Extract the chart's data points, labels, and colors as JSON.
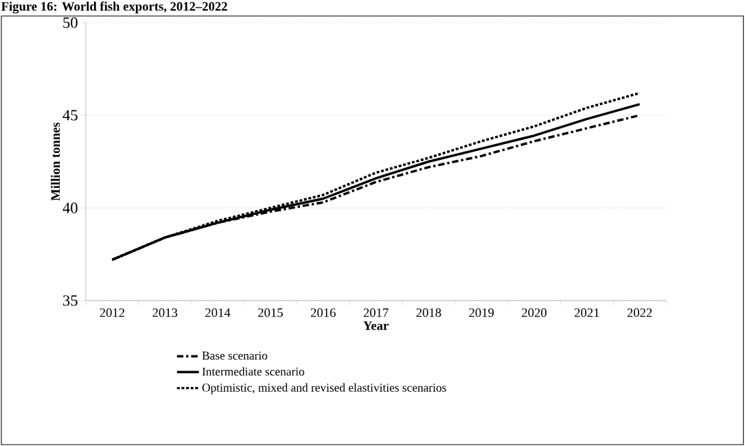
{
  "chart_data": {
    "type": "line",
    "title": "Figure 16: World fish exports, 2012–2022",
    "xlabel": "Year",
    "ylabel": "Million tonnes",
    "categories": [
      "2012",
      "2013",
      "2014",
      "2015",
      "2016",
      "2017",
      "2018",
      "2019",
      "2020",
      "2021",
      "2022"
    ],
    "series": [
      {
        "name": "Base scenario",
        "color": "#000000",
        "line_style": "dashed",
        "values": [
          37.2,
          38.4,
          39.2,
          39.8,
          40.3,
          41.4,
          42.2,
          42.8,
          43.6,
          44.3,
          45.0
        ]
      },
      {
        "name": "Intermediate scenario",
        "color": "#000000",
        "line_style": "solid",
        "values": [
          37.2,
          38.4,
          39.2,
          39.9,
          40.5,
          41.6,
          42.5,
          43.2,
          43.9,
          44.8,
          45.6
        ]
      },
      {
        "name": "Optimistic, mixed and revised elastivities scenarios",
        "color": "#000000",
        "line_style": "dotted",
        "values": [
          37.2,
          38.4,
          39.3,
          40.0,
          40.7,
          41.9,
          42.7,
          43.6,
          44.4,
          45.4,
          46.2
        ]
      }
    ],
    "ylim": [
      35,
      50
    ],
    "yticks": [
      35,
      40,
      45,
      50
    ],
    "grid": "y",
    "legend": "bottom",
    "marker": "none"
  }
}
